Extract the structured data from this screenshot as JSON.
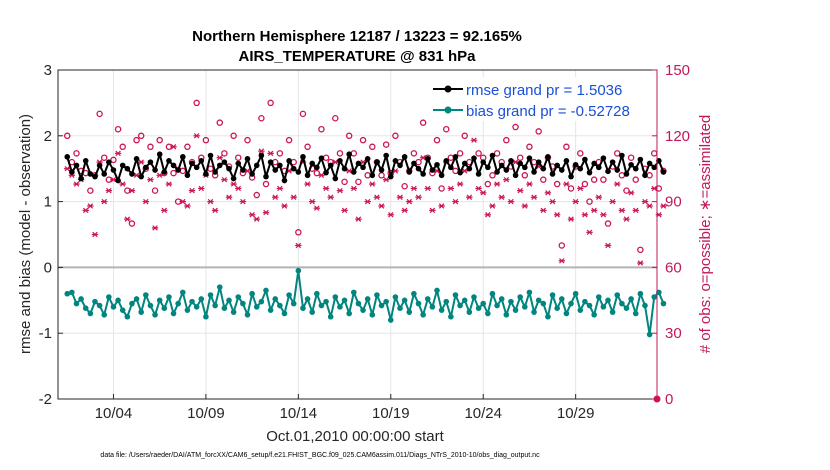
{
  "chart_data": {
    "type": "line",
    "title_line1": "Northern Hemisphere 12187 / 13223 = 92.165%",
    "title_line2": "AIRS_TEMPERATURE @ 831 hPa",
    "xlabel": "Oct.01,2010 00:00:00 start",
    "ylabel_left": "rmse and bias (model - observation)",
    "ylabel_right": "# of obs: o=possible; ∗=assimilated",
    "xlim": [
      1,
      33.4
    ],
    "ylim_left": [
      -2,
      3
    ],
    "ylim_right": [
      0,
      150
    ],
    "x_ticks": [
      4,
      9,
      14,
      19,
      24,
      29
    ],
    "x_tick_labels": [
      "10/04",
      "10/09",
      "10/14",
      "10/19",
      "10/24",
      "10/29"
    ],
    "y_ticks_left": [
      -2,
      -1,
      0,
      1,
      2,
      3
    ],
    "y_tick_labels_left": [
      "-2",
      "-1",
      "0",
      "1",
      "2",
      "3"
    ],
    "y_ticks_right": [
      0,
      30,
      60,
      90,
      120,
      150
    ],
    "y_tick_labels_right": [
      "0",
      "30",
      "60",
      "90",
      "120",
      "150"
    ],
    "colors": {
      "rmse": "#000000",
      "bias": "#00857f",
      "obs": "#cc1458",
      "legend_text": "#1a4fd6",
      "zero_line": "#b3b3b3",
      "grid": "#e5e5e5"
    },
    "series": [
      {
        "name": "rmse",
        "legend": "rmse grand pr = 1.5036",
        "values": [
          1.68,
          1.45,
          1.55,
          1.35,
          1.62,
          1.42,
          1.38,
          1.55,
          1.42,
          1.6,
          1.48,
          1.32,
          1.55,
          1.5,
          1.42,
          1.65,
          1.38,
          1.52,
          1.6,
          1.48,
          1.72,
          1.45,
          1.62,
          1.55,
          1.48,
          1.68,
          1.4,
          1.58,
          1.52,
          1.62,
          1.42,
          1.7,
          1.45,
          1.55,
          1.6,
          1.5,
          1.35,
          1.58,
          1.48,
          1.65,
          1.42,
          1.55,
          1.7,
          1.38,
          1.6,
          1.48,
          1.55,
          1.32,
          1.62,
          1.5,
          1.45,
          1.68,
          1.4,
          1.58,
          1.52,
          1.66,
          1.44,
          1.55,
          1.35,
          1.62,
          1.5,
          1.72,
          1.45,
          1.58,
          1.52,
          1.65,
          1.4,
          1.6,
          1.48,
          1.7,
          1.38,
          1.62,
          1.55,
          1.68,
          1.45,
          1.58,
          1.5,
          1.42,
          1.65,
          1.48,
          1.56,
          1.4,
          1.62,
          1.52,
          1.68,
          1.44,
          1.58,
          1.5,
          1.66,
          1.42,
          1.6,
          1.52,
          1.7,
          1.45,
          1.55,
          1.48,
          1.62,
          1.4,
          1.58,
          1.52,
          1.66,
          1.45,
          1.6,
          1.5,
          1.68,
          1.42,
          1.55,
          1.48,
          1.62,
          1.38,
          1.56,
          1.5,
          1.64,
          1.44,
          1.58,
          1.52,
          1.66,
          1.46,
          1.6,
          1.48,
          1.7,
          1.42,
          1.56,
          1.5,
          1.64,
          1.4,
          1.58,
          1.52,
          1.62,
          1.45
        ]
      },
      {
        "name": "bias",
        "legend": "bias grand pr = -0.52728",
        "values": [
          -0.4,
          -0.38,
          -0.55,
          -0.48,
          -0.62,
          -0.7,
          -0.52,
          -0.58,
          -0.72,
          -0.45,
          -0.6,
          -0.5,
          -0.65,
          -0.75,
          -0.55,
          -0.48,
          -0.68,
          -0.42,
          -0.58,
          -0.72,
          -0.5,
          -0.62,
          -0.45,
          -0.7,
          -0.55,
          -0.38,
          -0.65,
          -0.52,
          -0.6,
          -0.48,
          -0.75,
          -0.42,
          -0.58,
          -0.3,
          -0.62,
          -0.5,
          -0.68,
          -0.45,
          -0.55,
          -0.72,
          -0.4,
          -0.6,
          -0.52,
          -0.35,
          -0.65,
          -0.48,
          -0.58,
          -0.7,
          -0.42,
          -0.55,
          -0.05,
          -0.62,
          -0.48,
          -0.68,
          -0.4,
          -0.58,
          -0.52,
          -0.75,
          -0.45,
          -0.6,
          -0.5,
          -0.7,
          -0.38,
          -0.55,
          -0.65,
          -0.48,
          -0.72,
          -0.42,
          -0.58,
          -0.52,
          -0.8,
          -0.45,
          -0.62,
          -0.5,
          -0.68,
          -0.4,
          -0.55,
          -0.72,
          -0.48,
          -0.6,
          -0.35,
          -0.65,
          -0.52,
          -0.75,
          -0.42,
          -0.58,
          -0.5,
          -0.68,
          -0.45,
          -0.62,
          -0.55,
          -0.7,
          -0.4,
          -0.58,
          -0.48,
          -0.72,
          -0.52,
          -0.65,
          -0.45,
          -0.6,
          -0.38,
          -0.68,
          -0.5,
          -0.55,
          -0.75,
          -0.42,
          -0.62,
          -0.48,
          -0.7,
          -0.55,
          -0.4,
          -0.65,
          -0.52,
          -0.58,
          -0.72,
          -0.45,
          -0.6,
          -0.5,
          -0.68,
          -0.42,
          -0.55,
          -0.62,
          -0.48,
          -0.7,
          -0.4,
          -0.58,
          -1.02,
          -0.45,
          -0.38,
          -0.55
        ]
      },
      {
        "name": "possible",
        "marker": "o",
        "values": [
          120,
          108,
          112,
          104,
          103,
          95,
          102,
          130,
          110,
          100,
          109,
          123,
          115,
          95,
          80,
          118,
          120,
          105,
          115,
          95,
          118,
          103,
          115,
          103,
          90,
          104,
          115,
          108,
          135,
          110,
          118,
          105,
          102,
          126,
          112,
          106,
          120,
          110,
          103,
          118,
          101,
          93,
          128,
          98,
          135,
          108,
          112,
          104,
          118,
          108,
          76,
          130,
          115,
          105,
          103,
          123,
          110,
          108,
          128,
          112,
          99,
          120,
          112,
          99,
          118,
          102,
          115,
          108,
          102,
          116,
          103,
          120,
          108,
          97,
          104,
          112,
          108,
          126,
          110,
          103,
          118,
          96,
          123,
          110,
          104,
          112,
          120,
          108,
          134,
          112,
          110,
          98,
          102,
          112,
          108,
          118,
          106,
          124,
          110,
          102,
          115,
          108,
          122,
          100,
          110,
          106,
          98,
          70,
          115,
          96,
          106,
          112,
          98,
          90,
          100,
          108,
          100,
          80,
          106,
          112,
          102,
          95,
          110,
          100,
          68,
          105,
          102,
          112,
          96,
          104
        ]
      },
      {
        "name": "assimilated",
        "marker": "*",
        "values": [
          105,
          102,
          98,
          100,
          86,
          88,
          75,
          108,
          90,
          95,
          100,
          112,
          98,
          82,
          95,
          102,
          108,
          90,
          100,
          78,
          102,
          86,
          98,
          115,
          105,
          90,
          88,
          95,
          120,
          96,
          102,
          90,
          86,
          110,
          100,
          92,
          98,
          96,
          90,
          104,
          84,
          82,
          113,
          85,
          112,
          92,
          96,
          88,
          104,
          92,
          70,
          108,
          98,
          90,
          87,
          102,
          96,
          92,
          108,
          95,
          86,
          104,
          96,
          82,
          108,
          90,
          98,
          92,
          88,
          100,
          84,
          104,
          92,
          86,
          90,
          96,
          92,
          110,
          96,
          86,
          104,
          88,
          108,
          96,
          90,
          98,
          104,
          92,
          118,
          96,
          94,
          84,
          88,
          98,
          92,
          100,
          90,
          108,
          95,
          88,
          98,
          92,
          106,
          86,
          94,
          90,
          84,
          63,
          98,
          82,
          90,
          96,
          84,
          76,
          86,
          92,
          84,
          70,
          90,
          98,
          86,
          82,
          94,
          86,
          62,
          90,
          88,
          96,
          84,
          88
        ]
      }
    ],
    "footer": "data file: /Users/raeder/DAI/ATM_forcXX/CAM6_setup/f.e21.FHIST_BGC.f09_025.CAM6assim.011/Diags_NTrS_2010-10/obs_diag_output.nc"
  }
}
